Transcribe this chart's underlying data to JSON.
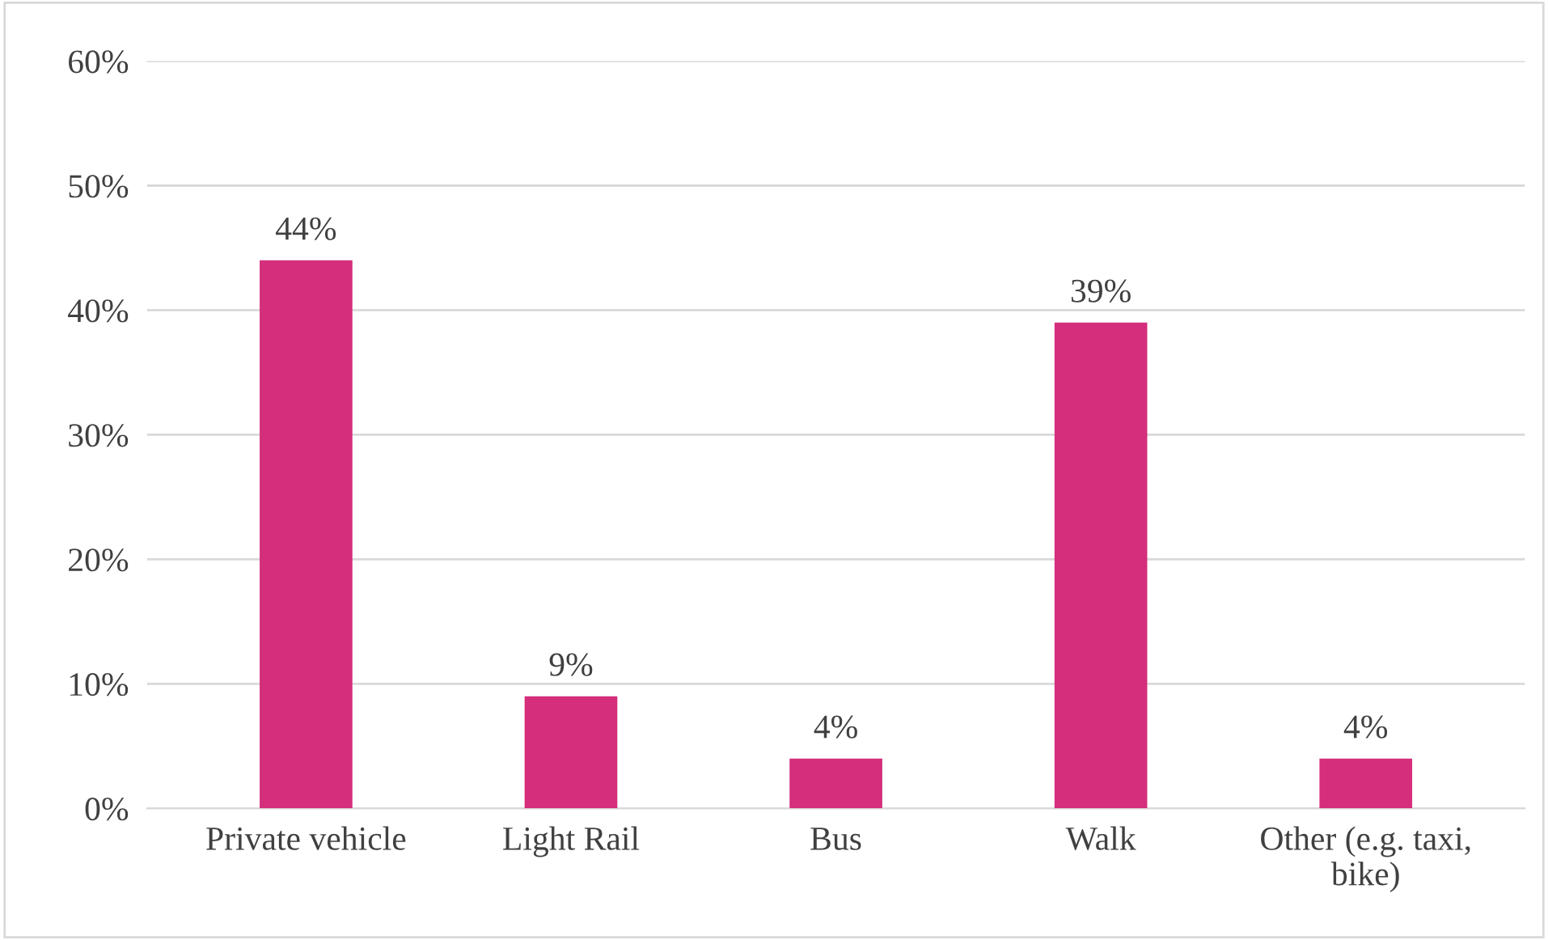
{
  "chart_data": {
    "type": "bar",
    "categories": [
      "Private vehicle",
      "Light Rail",
      "Bus",
      "Walk",
      "Other (e.g. taxi,\nbike)"
    ],
    "values": [
      44,
      9,
      4,
      39,
      4
    ],
    "value_labels": [
      "44%",
      "9%",
      "4%",
      "39%",
      "4%"
    ],
    "color": "#d42e7c",
    "ylim": [
      0,
      60
    ],
    "yticks": [
      {
        "value": 0,
        "label": "0%"
      },
      {
        "value": 10,
        "label": "10%"
      },
      {
        "value": 20,
        "label": "20%"
      },
      {
        "value": 30,
        "label": "30%"
      },
      {
        "value": 40,
        "label": "40%"
      },
      {
        "value": 50,
        "label": "50%"
      },
      {
        "value": 60,
        "label": "60%"
      }
    ],
    "grid": "y",
    "legend": false
  }
}
